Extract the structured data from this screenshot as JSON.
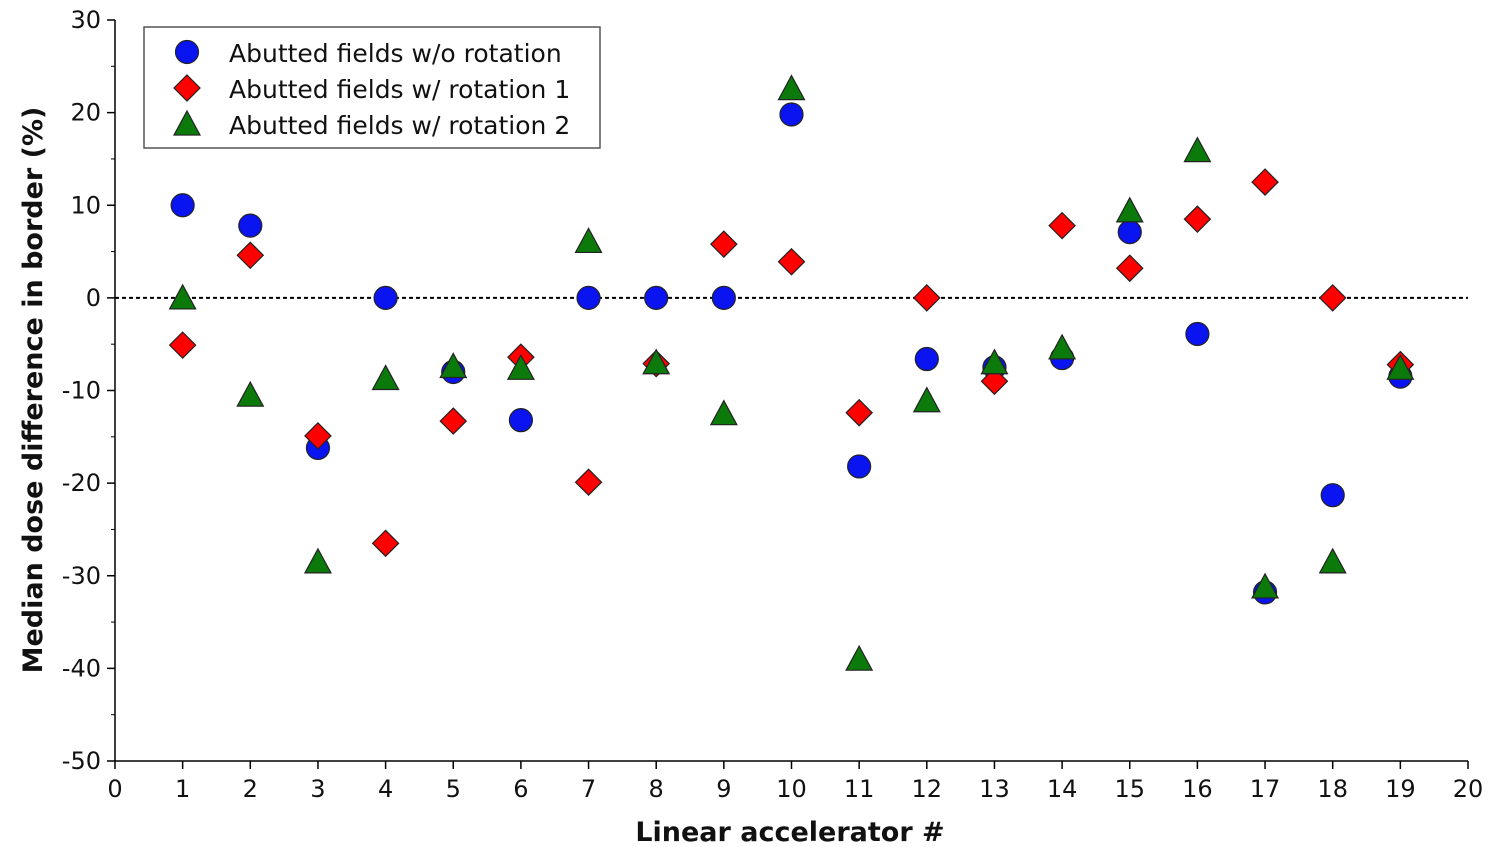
{
  "chart_data": {
    "type": "scatter",
    "title": "",
    "xlabel": "Linear accelerator #",
    "ylabel": "Median dose difference in border (%)",
    "xlim": [
      0,
      20
    ],
    "ylim": [
      -50,
      30
    ],
    "xticks": [
      0,
      1,
      2,
      3,
      4,
      5,
      6,
      7,
      8,
      9,
      10,
      11,
      12,
      13,
      14,
      15,
      16,
      17,
      18,
      19,
      20
    ],
    "yticks": [
      -50,
      -40,
      -30,
      -20,
      -10,
      0,
      10,
      20,
      30
    ],
    "grid": false,
    "reference_line": {
      "y": 0,
      "style": "dotted"
    },
    "legend_position": "top-left",
    "series": [
      {
        "name": "Abutted fields w/o rotation",
        "marker": "circle",
        "color": "#0a14f0",
        "x": [
          1,
          2,
          3,
          4,
          5,
          6,
          7,
          8,
          9,
          10,
          11,
          12,
          13,
          14,
          15,
          16,
          17,
          18,
          19
        ],
        "values": [
          10,
          7.8,
          -16.2,
          0,
          -8,
          -13.2,
          0,
          0,
          0,
          19.8,
          -18.2,
          -6.6,
          -7.5,
          -6.5,
          7.1,
          -3.9,
          -31.8,
          -21.3,
          -8.5
        ]
      },
      {
        "name": "Abutted fields w/ rotation 1",
        "marker": "diamond",
        "color": "#ff0000",
        "x": [
          1,
          2,
          3,
          4,
          5,
          6,
          7,
          8,
          9,
          10,
          11,
          12,
          13,
          14,
          15,
          16,
          17,
          18,
          19
        ],
        "values": [
          -5.1,
          4.6,
          -14.9,
          -26.5,
          -13.3,
          -6.4,
          -19.9,
          -7.1,
          5.8,
          3.9,
          -12.4,
          0,
          -9,
          7.8,
          3.2,
          8.5,
          12.5,
          0,
          -7.2
        ]
      },
      {
        "name": "Abutted fields w/ rotation 2",
        "marker": "triangle",
        "color": "#0b7a0b",
        "x": [
          1,
          2,
          3,
          4,
          5,
          6,
          7,
          8,
          9,
          10,
          11,
          12,
          13,
          14,
          15,
          16,
          17,
          18,
          19
        ],
        "values": [
          0,
          -10.5,
          -28.5,
          -8.7,
          -7.4,
          -7.6,
          6.1,
          -7,
          -12.5,
          22.6,
          -39,
          -11.1,
          -7,
          -5.4,
          9.4,
          15.9,
          -31.2,
          -28.5,
          -7.6
        ]
      }
    ]
  }
}
